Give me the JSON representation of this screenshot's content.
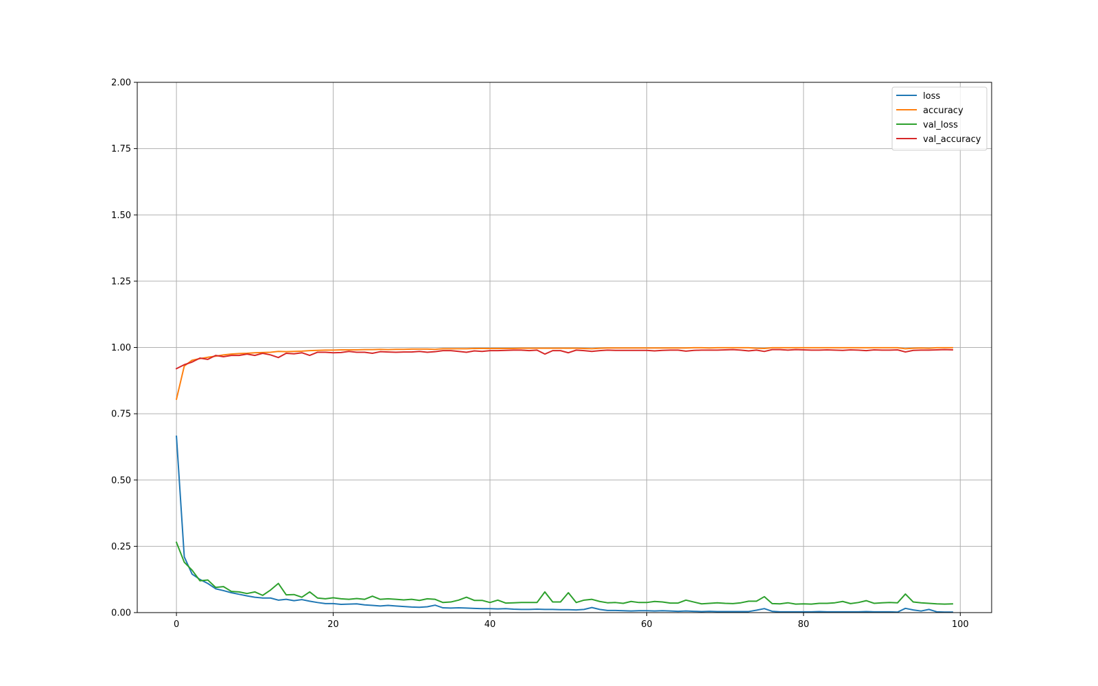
{
  "chart_data": {
    "type": "line",
    "title": "",
    "xlabel": "",
    "ylabel": "",
    "xlim": [
      -5,
      104
    ],
    "ylim": [
      0,
      2
    ],
    "grid": true,
    "legend_position": "top-right",
    "x_ticks": [
      0,
      20,
      40,
      60,
      80,
      100
    ],
    "x_tick_labels": [
      "0",
      "20",
      "40",
      "60",
      "80",
      "100"
    ],
    "y_ticks": [
      0,
      0.25,
      0.5,
      0.75,
      1.0,
      1.25,
      1.5,
      1.75,
      2.0
    ],
    "y_tick_labels": [
      "0.00",
      "0.25",
      "0.50",
      "0.75",
      "1.00",
      "1.25",
      "1.50",
      "1.75",
      "2.00"
    ],
    "series": [
      {
        "name": "loss",
        "color": "#1f77b4",
        "values": [
          0.665,
          0.21,
          0.145,
          0.125,
          0.11,
          0.09,
          0.083,
          0.075,
          0.069,
          0.063,
          0.058,
          0.055,
          0.055,
          0.047,
          0.05,
          0.045,
          0.049,
          0.043,
          0.038,
          0.034,
          0.034,
          0.031,
          0.032,
          0.033,
          0.029,
          0.027,
          0.025,
          0.027,
          0.025,
          0.023,
          0.021,
          0.02,
          0.022,
          0.028,
          0.018,
          0.017,
          0.018,
          0.017,
          0.016,
          0.015,
          0.015,
          0.014,
          0.015,
          0.013,
          0.012,
          0.012,
          0.013,
          0.012,
          0.012,
          0.011,
          0.011,
          0.01,
          0.012,
          0.019,
          0.012,
          0.008,
          0.008,
          0.007,
          0.006,
          0.007,
          0.007,
          0.006,
          0.007,
          0.006,
          0.005,
          0.006,
          0.005,
          0.004,
          0.005,
          0.004,
          0.004,
          0.004,
          0.004,
          0.004,
          0.009,
          0.015,
          0.005,
          0.003,
          0.003,
          0.003,
          0.003,
          0.003,
          0.004,
          0.003,
          0.003,
          0.003,
          0.003,
          0.003,
          0.004,
          0.003,
          0.003,
          0.003,
          0.002,
          0.016,
          0.01,
          0.006,
          0.012,
          0.003,
          0.002,
          0.002
        ]
      },
      {
        "name": "accuracy",
        "color": "#ff7f0e",
        "values": [
          0.805,
          0.93,
          0.952,
          0.958,
          0.963,
          0.967,
          0.972,
          0.975,
          0.977,
          0.978,
          0.98,
          0.981,
          0.982,
          0.985,
          0.984,
          0.985,
          0.986,
          0.988,
          0.989,
          0.99,
          0.99,
          0.991,
          0.991,
          0.991,
          0.992,
          0.992,
          0.993,
          0.992,
          0.993,
          0.993,
          0.994,
          0.994,
          0.994,
          0.993,
          0.995,
          0.995,
          0.995,
          0.995,
          0.996,
          0.996,
          0.996,
          0.996,
          0.996,
          0.996,
          0.997,
          0.997,
          0.997,
          0.997,
          0.997,
          0.997,
          0.997,
          0.997,
          0.996,
          0.995,
          0.997,
          0.998,
          0.998,
          0.998,
          0.998,
          0.998,
          0.998,
          0.998,
          0.998,
          0.998,
          0.998,
          0.998,
          0.999,
          0.999,
          0.998,
          0.999,
          0.999,
          0.999,
          0.999,
          0.999,
          0.997,
          0.996,
          0.999,
          0.999,
          0.999,
          0.999,
          0.999,
          0.999,
          0.999,
          0.999,
          0.999,
          0.999,
          0.999,
          0.999,
          0.999,
          0.999,
          0.999,
          0.999,
          0.999,
          0.995,
          0.997,
          0.998,
          0.997,
          0.999,
          0.999,
          0.999
        ]
      },
      {
        "name": "val_loss",
        "color": "#2ca02c",
        "values": [
          0.265,
          0.19,
          0.16,
          0.12,
          0.123,
          0.095,
          0.098,
          0.08,
          0.078,
          0.072,
          0.078,
          0.065,
          0.085,
          0.11,
          0.067,
          0.068,
          0.058,
          0.078,
          0.055,
          0.052,
          0.056,
          0.052,
          0.05,
          0.053,
          0.05,
          0.062,
          0.05,
          0.052,
          0.05,
          0.048,
          0.05,
          0.046,
          0.052,
          0.05,
          0.038,
          0.04,
          0.047,
          0.058,
          0.046,
          0.046,
          0.038,
          0.047,
          0.036,
          0.037,
          0.038,
          0.038,
          0.038,
          0.078,
          0.04,
          0.04,
          0.075,
          0.038,
          0.047,
          0.05,
          0.042,
          0.037,
          0.038,
          0.035,
          0.042,
          0.038,
          0.038,
          0.042,
          0.04,
          0.036,
          0.036,
          0.047,
          0.04,
          0.033,
          0.035,
          0.037,
          0.035,
          0.034,
          0.037,
          0.043,
          0.043,
          0.06,
          0.034,
          0.033,
          0.037,
          0.032,
          0.033,
          0.032,
          0.035,
          0.035,
          0.037,
          0.042,
          0.034,
          0.038,
          0.045,
          0.035,
          0.037,
          0.038,
          0.037,
          0.07,
          0.04,
          0.037,
          0.035,
          0.033,
          0.032,
          0.033
        ]
      },
      {
        "name": "val_accuracy",
        "color": "#d62728",
        "values": [
          0.92,
          0.935,
          0.945,
          0.96,
          0.955,
          0.97,
          0.965,
          0.97,
          0.97,
          0.975,
          0.97,
          0.978,
          0.972,
          0.962,
          0.978,
          0.976,
          0.98,
          0.97,
          0.982,
          0.982,
          0.98,
          0.981,
          0.985,
          0.982,
          0.982,
          0.978,
          0.984,
          0.983,
          0.982,
          0.983,
          0.983,
          0.985,
          0.982,
          0.984,
          0.988,
          0.988,
          0.985,
          0.982,
          0.987,
          0.985,
          0.988,
          0.988,
          0.989,
          0.99,
          0.99,
          0.988,
          0.99,
          0.975,
          0.988,
          0.988,
          0.98,
          0.99,
          0.988,
          0.985,
          0.988,
          0.99,
          0.989,
          0.989,
          0.989,
          0.989,
          0.989,
          0.987,
          0.989,
          0.99,
          0.99,
          0.986,
          0.989,
          0.99,
          0.99,
          0.99,
          0.991,
          0.992,
          0.99,
          0.987,
          0.99,
          0.985,
          0.992,
          0.992,
          0.99,
          0.992,
          0.991,
          0.99,
          0.99,
          0.991,
          0.99,
          0.989,
          0.991,
          0.99,
          0.988,
          0.991,
          0.99,
          0.99,
          0.991,
          0.983,
          0.989,
          0.99,
          0.99,
          0.991,
          0.992,
          0.991
        ]
      }
    ]
  }
}
